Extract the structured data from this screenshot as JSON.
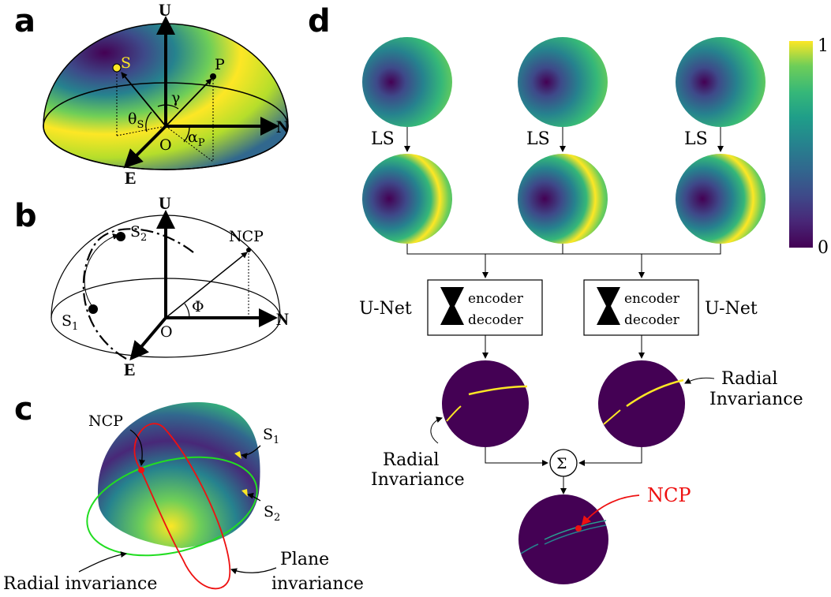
{
  "panels": {
    "a": {
      "letter": "a",
      "axes": {
        "up": "U",
        "north": "N",
        "east": "E",
        "origin": "O"
      },
      "points": {
        "sun": "S",
        "pole": "P"
      },
      "angles": {
        "theta": "θ",
        "theta_sub": "S",
        "gamma": "γ",
        "alpha": "α",
        "alpha_sub": "P"
      }
    },
    "b": {
      "letter": "b",
      "axes": {
        "up": "U",
        "north": "N",
        "east": "E",
        "origin": "O"
      },
      "points": {
        "s1": "S",
        "s1_sub": "1",
        "s2": "S",
        "s2_sub": "2",
        "ncp": "NCP"
      },
      "angles": {
        "phi": "Φ"
      }
    },
    "c": {
      "letter": "c",
      "labels": {
        "ncp": "NCP",
        "s1": "S",
        "s1_sub": "1",
        "s2": "S",
        "s2_sub": "2",
        "radial": "Radial invariance",
        "plane_1": "Plane",
        "plane_2": "invariance"
      }
    },
    "d": {
      "letter": "d",
      "ls_label": "LS",
      "unet_label": "U-Net",
      "encoder": "encoder",
      "decoder": "decoder",
      "radial_1": "Radial",
      "radial_2": "Invariance",
      "sum_symbol": "Σ",
      "ncp": "NCP",
      "colorbar": {
        "max": "1",
        "min": "0"
      }
    }
  },
  "colors": {
    "viridis_dark": "#440154",
    "viridis_yellow": "#fde725",
    "ncp_red": "#ee1111",
    "radial_green": "#22dd22"
  }
}
